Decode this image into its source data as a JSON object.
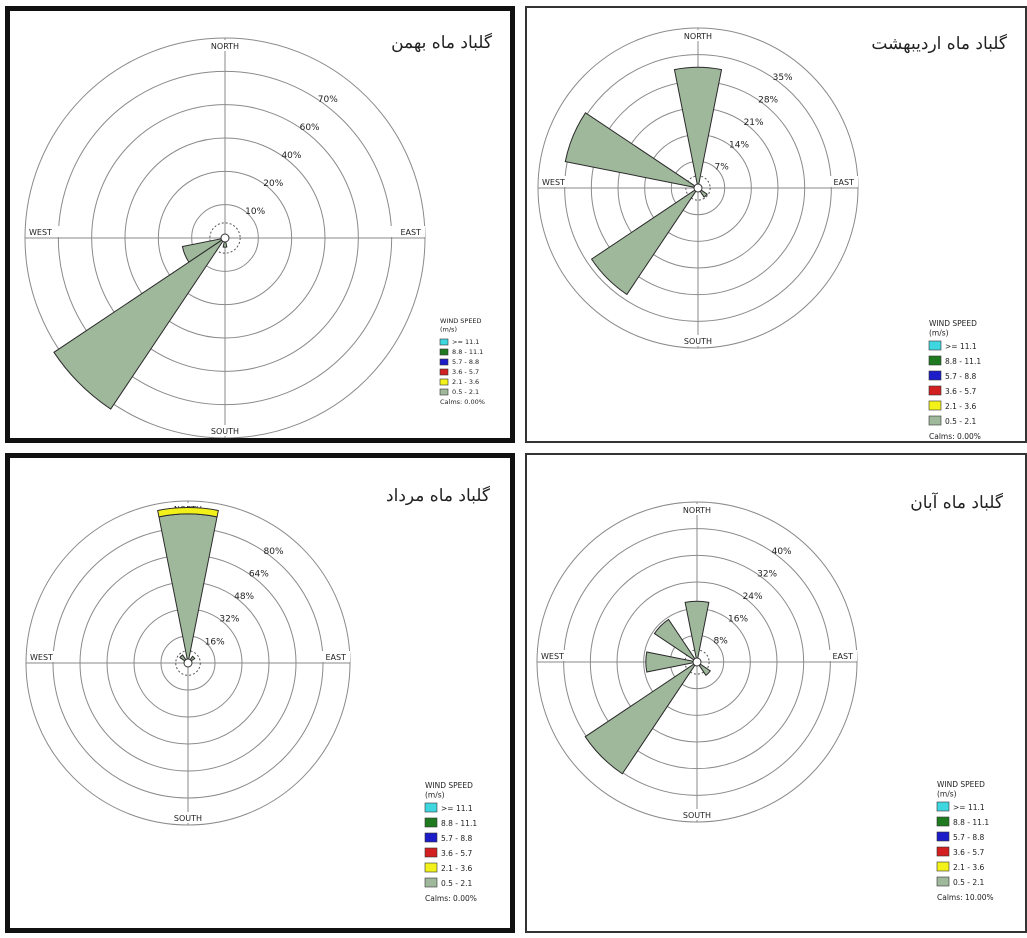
{
  "legend": {
    "title": "WIND SPEED",
    "unit": "(m/s)",
    "bins": [
      {
        "label": ">= 11.1",
        "color": "#3fd7df"
      },
      {
        "label": "8.8 - 11.1",
        "color": "#1f7a1f"
      },
      {
        "label": "5.7 - 8.8",
        "color": "#1c1cc8"
      },
      {
        "label": "3.6 - 5.7",
        "color": "#d21f1f"
      },
      {
        "label": "2.1 - 3.6",
        "color": "#f2f21a"
      },
      {
        "label": "0.5 - 2.1",
        "color": "#9fb79b"
      }
    ]
  },
  "directions": {
    "north": "NORTH",
    "south": "SOUTH",
    "east": "EAST",
    "west": "WEST"
  },
  "chart_data": [
    {
      "type": "wind-rose",
      "title": "گلباد ماه بهمن",
      "rings": [
        "10%",
        "20%",
        "40%",
        "60%",
        "70%"
      ],
      "calms": "Calms: 0.00%",
      "sectors": [
        {
          "direction": "WSW",
          "angle": 247.5,
          "percent": 19
        },
        {
          "direction": "SW",
          "angle": 225,
          "percent": 90
        },
        {
          "direction": "S",
          "angle": 180,
          "percent": 4
        }
      ]
    },
    {
      "type": "wind-rose",
      "title": "گلباد ماه اردیبهشت",
      "rings": [
        "7%",
        "14%",
        "21%",
        "28%",
        "35%"
      ],
      "calms": "Calms: 0.00%",
      "sectors": [
        {
          "direction": "N",
          "angle": 0,
          "percent": 33
        },
        {
          "direction": "WNW",
          "angle": 292.5,
          "percent": 37
        },
        {
          "direction": "SW",
          "angle": 225,
          "percent": 35
        },
        {
          "direction": "SE",
          "angle": 135,
          "percent": 3
        }
      ]
    },
    {
      "type": "wind-rose",
      "title": "گلباد ماه مرداد",
      "rings": [
        "16%",
        "32%",
        "48%",
        "64%",
        "80%"
      ],
      "calms": "Calms: 0.00%",
      "sectors": [
        {
          "direction": "N",
          "angle": 0,
          "percent": 92,
          "top_band": 4
        },
        {
          "direction": "NE",
          "angle": 45,
          "percent": 5
        },
        {
          "direction": "NW",
          "angle": 315,
          "percent": 6
        }
      ]
    },
    {
      "type": "wind-rose",
      "title": "گلباد ماه آبان",
      "rings": [
        "8%",
        "16%",
        "24%",
        "32%",
        "40%"
      ],
      "calms": "Calms: 10.00%",
      "sectors": [
        {
          "direction": "N",
          "angle": 0,
          "percent": 19
        },
        {
          "direction": "NW",
          "angle": 315,
          "percent": 16
        },
        {
          "direction": "W",
          "angle": 270,
          "percent": 16
        },
        {
          "direction": "SW",
          "angle": 225,
          "percent": 42
        },
        {
          "direction": "SE",
          "angle": 135,
          "percent": 5
        }
      ]
    }
  ]
}
